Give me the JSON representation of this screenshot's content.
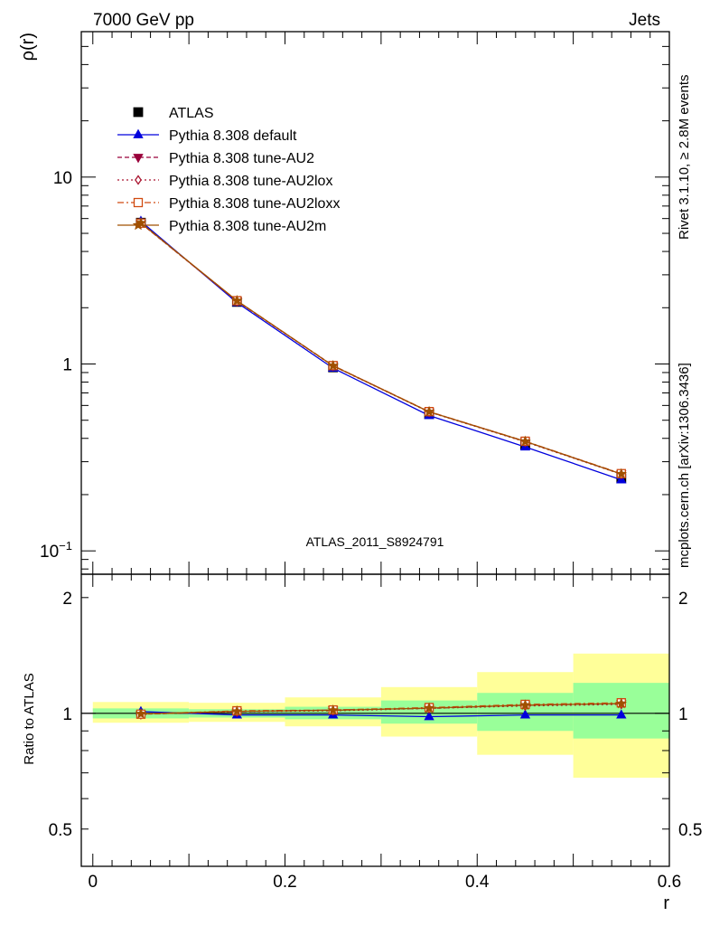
{
  "header": {
    "left": "7000 GeV pp",
    "right": "Jets",
    "side_top": "Rivet 3.1.10, ≥ 2.8M events",
    "side_bottom": "mcplots.cern.ch [arXiv:1306.3436]",
    "watermark": "ATLAS_2011_S8924791"
  },
  "chart_data": [
    {
      "type": "line",
      "panel": "main",
      "ylabel": "ρ(r)",
      "xlabel": "",
      "yscale": "log",
      "xlim": [
        -0.012,
        0.6
      ],
      "ylim": [
        0.075,
        60
      ],
      "yticks": [
        {
          "value": 0.1,
          "base": "10",
          "exp": "−1"
        },
        {
          "value": 1,
          "base": "1",
          "exp": ""
        },
        {
          "value": 10,
          "base": "10",
          "exp": ""
        }
      ],
      "x": [
        0.05,
        0.15,
        0.25,
        0.35,
        0.45,
        0.55
      ],
      "legend_position": "top-left",
      "series": [
        {
          "name": "ATLAS",
          "style": "data",
          "color": "#000000",
          "marker": "square-filled",
          "values": [
            5.7,
            2.15,
            0.96,
            0.54,
            0.37,
            0.245
          ]
        },
        {
          "name": "Pythia 8.308 default",
          "color": "#0000dd",
          "marker": "triangle-up-filled",
          "dash": "",
          "values": [
            5.8,
            2.13,
            0.95,
            0.53,
            0.36,
            0.24
          ]
        },
        {
          "name": "Pythia 8.308 tune-AU2",
          "color": "#99003a",
          "marker": "triangle-down-filled",
          "dash": "5,3",
          "values": [
            5.66,
            2.17,
            0.98,
            0.555,
            0.385,
            0.258
          ]
        },
        {
          "name": "Pythia 8.308 tune-AU2lox",
          "color": "#aa1530",
          "marker": "diamond-open",
          "dash": "2,3",
          "values": [
            5.66,
            2.17,
            0.975,
            0.553,
            0.383,
            0.257
          ]
        },
        {
          "name": "Pythia 8.308 tune-AU2loxx",
          "color": "#d04a10",
          "marker": "square-open",
          "dash": "7,3,2,3",
          "values": [
            5.67,
            2.18,
            0.98,
            0.556,
            0.386,
            0.259
          ]
        },
        {
          "name": "Pythia 8.308 tune-AU2m",
          "color": "#a05000",
          "marker": "star",
          "dash": "",
          "values": [
            5.68,
            2.18,
            0.978,
            0.555,
            0.385,
            0.258
          ]
        }
      ]
    },
    {
      "type": "line",
      "panel": "ratio",
      "ylabel": "Ratio to ATLAS",
      "xlabel": "r",
      "xlim": [
        -0.012,
        0.6
      ],
      "ylim": [
        0.4,
        2.3
      ],
      "yscale": "log",
      "xticks": [
        {
          "value": 0,
          "label": "0"
        },
        {
          "value": 0.2,
          "label": "0.2"
        },
        {
          "value": 0.4,
          "label": "0.4"
        },
        {
          "value": 0.6,
          "label": "0.6"
        }
      ],
      "yticks": [
        {
          "value": 0.5,
          "label": "0.5"
        },
        {
          "value": 1,
          "label": "1"
        },
        {
          "value": 2,
          "label": "2"
        }
      ],
      "bands": {
        "bin_edges": [
          0,
          0.1,
          0.2,
          0.3,
          0.4,
          0.5,
          0.6
        ],
        "stat_lo": [
          0.97,
          0.975,
          0.965,
          0.94,
          0.9,
          0.86
        ],
        "stat_hi": [
          1.03,
          1.025,
          1.04,
          1.08,
          1.13,
          1.2
        ],
        "total_lo": [
          0.945,
          0.95,
          0.925,
          0.87,
          0.78,
          0.68
        ],
        "total_hi": [
          1.07,
          1.065,
          1.1,
          1.17,
          1.28,
          1.43
        ],
        "stat_color": "#99ff99",
        "total_color": "#ffff99"
      },
      "x": [
        0.05,
        0.15,
        0.25,
        0.35,
        0.45,
        0.55
      ],
      "series": [
        {
          "name": "Pythia 8.308 default",
          "color": "#0000dd",
          "marker": "triangle-up-filled",
          "dash": "",
          "values": [
            1.01,
            0.99,
            0.99,
            0.98,
            0.99,
            0.99
          ]
        },
        {
          "name": "Pythia 8.308 tune-AU2",
          "color": "#99003a",
          "marker": "triangle-down-filled",
          "dash": "5,3",
          "values": [
            0.995,
            1.01,
            1.02,
            1.03,
            1.05,
            1.06
          ]
        },
        {
          "name": "Pythia 8.308 tune-AU2lox",
          "color": "#aa1530",
          "marker": "diamond-open",
          "dash": "2,3",
          "values": [
            0.995,
            1.01,
            1.015,
            1.03,
            1.045,
            1.055
          ]
        },
        {
          "name": "Pythia 8.308 tune-AU2loxx",
          "color": "#d04a10",
          "marker": "square-open",
          "dash": "7,3,2,3",
          "values": [
            0.995,
            1.015,
            1.02,
            1.035,
            1.055,
            1.065
          ]
        },
        {
          "name": "Pythia 8.308 tune-AU2m",
          "color": "#a05000",
          "marker": "star",
          "dash": "",
          "values": [
            0.997,
            1.012,
            1.018,
            1.032,
            1.05,
            1.06
          ]
        }
      ]
    }
  ]
}
